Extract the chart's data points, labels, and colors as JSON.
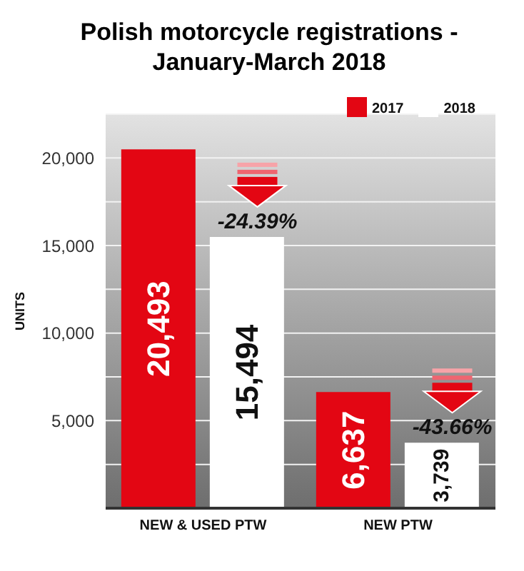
{
  "chart_data": {
    "type": "bar",
    "title": "Polish motorcycle registrations - January-March 2018",
    "ylabel": "UNITS",
    "categories": [
      "NEW & USED PTW",
      "NEW PTW"
    ],
    "series": [
      {
        "name": "2017",
        "color": "#e30613",
        "values": [
          20493,
          6637
        ],
        "value_labels": [
          "20,493",
          "6,637"
        ]
      },
      {
        "name": "2018",
        "color": "#ffffff",
        "values": [
          15494,
          3739
        ],
        "value_labels": [
          "15,494",
          "3,739"
        ]
      }
    ],
    "ylim": [
      0,
      22500
    ],
    "yticks": [
      {
        "value": 0,
        "label": null
      },
      {
        "value": 2500,
        "label": null
      },
      {
        "value": 5000,
        "label": "5,000"
      },
      {
        "value": 7500,
        "label": null
      },
      {
        "value": 10000,
        "label": "10,000"
      },
      {
        "value": 12500,
        "label": null
      },
      {
        "value": 15000,
        "label": "15,000"
      },
      {
        "value": 17500,
        "label": null
      },
      {
        "value": 20000,
        "label": "20,000"
      }
    ],
    "annotations": [
      "-24.39%",
      "-43.66%"
    ],
    "grid": "y",
    "legend": "top right"
  }
}
